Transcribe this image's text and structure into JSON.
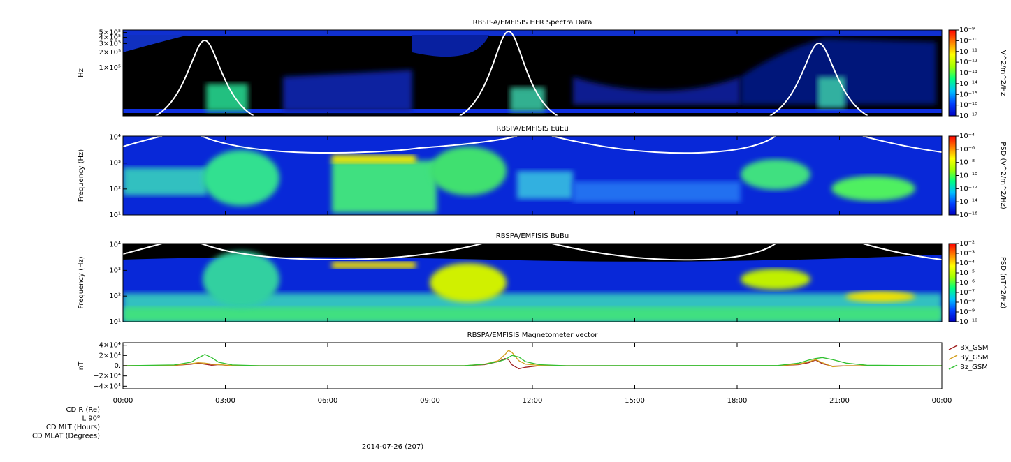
{
  "chart_data": [
    {
      "type": "spectrogram",
      "title": "RBSP-A/EMFISIS  HFR Spectra Data",
      "y_label": "Hz",
      "log_scale": true,
      "ylim": [
        11000,
        560000
      ],
      "yticks": [
        {
          "value": 100000,
          "label": "1×10⁵"
        },
        {
          "value": 200000,
          "label": "2×10⁵"
        },
        {
          "value": 300000,
          "label": "3×10⁵"
        },
        {
          "value": 400000,
          "label": "4×10⁵"
        },
        {
          "value": 500000,
          "label": "5×10⁵"
        }
      ],
      "colorbar": {
        "label": "V^2/m^2/Hz",
        "zlim": [
          1e-17,
          1e-09
        ],
        "colors": [
          "#0000c0",
          "#0040ff",
          "#00c0ff",
          "#00ff80",
          "#a0ff00",
          "#ffff00",
          "#ff8000",
          "#ff0000"
        ],
        "zticks": [
          {
            "value": 1e-17,
            "label": "10⁻¹⁷"
          },
          {
            "value": 1e-16,
            "label": "10⁻¹⁶"
          },
          {
            "value": 1e-15,
            "label": "10⁻¹⁵"
          },
          {
            "value": 1e-14,
            "label": "10⁻¹⁴"
          },
          {
            "value": 1e-13,
            "label": "10⁻¹³"
          },
          {
            "value": 1e-12,
            "label": "10⁻¹²"
          },
          {
            "value": 1e-11,
            "label": "10⁻¹¹"
          },
          {
            "value": 1e-10,
            "label": "10⁻¹⁰"
          },
          {
            "value": 1e-09,
            "label": "10⁻⁹"
          }
        ]
      }
    },
    {
      "type": "spectrogram",
      "title": "RBSPA/EMFISIS  EuEu",
      "y_label": "Frequency (Hz)",
      "log_scale": true,
      "ylim": [
        10,
        11000
      ],
      "yticks": [
        {
          "value": 10,
          "label": "10¹"
        },
        {
          "value": 100,
          "label": "10²"
        },
        {
          "value": 1000,
          "label": "10³"
        },
        {
          "value": 10000,
          "label": "10⁴"
        }
      ],
      "colorbar": {
        "label": "PSD (V^2/m^2/Hz)",
        "zlim": [
          1e-16,
          0.0001
        ],
        "colors": [
          "#0000c0",
          "#0040ff",
          "#00c0ff",
          "#00ff80",
          "#a0ff00",
          "#ffff00",
          "#ff8000",
          "#ff0000"
        ],
        "zticks": [
          {
            "value": 1e-16,
            "label": "10⁻¹⁶"
          },
          {
            "value": 1e-14,
            "label": "10⁻¹⁴"
          },
          {
            "value": 1e-12,
            "label": "10⁻¹²"
          },
          {
            "value": 1e-10,
            "label": "10⁻¹⁰"
          },
          {
            "value": 1e-08,
            "label": "10⁻⁸"
          },
          {
            "value": 1e-06,
            "label": "10⁻⁶"
          },
          {
            "value": 0.0001,
            "label": "10⁻⁴"
          }
        ]
      }
    },
    {
      "type": "spectrogram",
      "title": "RBSPA/EMFISIS  BuBu",
      "y_label": "Frequency (Hz)",
      "log_scale": true,
      "ylim": [
        10,
        11000
      ],
      "yticks": [
        {
          "value": 10,
          "label": "10¹"
        },
        {
          "value": 100,
          "label": "10²"
        },
        {
          "value": 1000,
          "label": "10³"
        },
        {
          "value": 10000,
          "label": "10⁴"
        }
      ],
      "colorbar": {
        "label": "PSD (nT^2/Hz)",
        "zlim": [
          1e-10,
          0.01
        ],
        "colors": [
          "#0000c0",
          "#0040ff",
          "#00c0ff",
          "#00ff80",
          "#a0ff00",
          "#ffff00",
          "#ff8000",
          "#ff0000"
        ],
        "zticks": [
          {
            "value": 1e-10,
            "label": "10⁻¹⁰"
          },
          {
            "value": 1e-09,
            "label": "10⁻⁹"
          },
          {
            "value": 1e-08,
            "label": "10⁻⁸"
          },
          {
            "value": 1e-07,
            "label": "10⁻⁷"
          },
          {
            "value": 1e-06,
            "label": "10⁻⁶"
          },
          {
            "value": 1e-05,
            "label": "10⁻⁵"
          },
          {
            "value": 0.0001,
            "label": "10⁻⁴"
          },
          {
            "value": 0.001,
            "label": "10⁻³"
          },
          {
            "value": 0.01,
            "label": "10⁻²"
          }
        ]
      }
    },
    {
      "type": "line",
      "title": "RBSPA/EMFISIS  Magnetometer vector",
      "y_label": "nT",
      "legend": "right",
      "ylim": [
        -45000,
        45000
      ],
      "yticks": [
        {
          "value": -40000,
          "label": "−4×10⁴"
        },
        {
          "value": -20000,
          "label": "−2×10⁴"
        },
        {
          "value": 0,
          "label": "0."
        },
        {
          "value": 20000,
          "label": "2×10⁴"
        },
        {
          "value": 40000,
          "label": "4×10⁴"
        }
      ],
      "xlim": [
        0,
        24
      ],
      "xticks": [
        {
          "value": 0,
          "label": "00:00"
        },
        {
          "value": 3,
          "label": "03:00"
        },
        {
          "value": 6,
          "label": "06:00"
        },
        {
          "value": 9,
          "label": "09:00"
        },
        {
          "value": 12,
          "label": "12:00"
        },
        {
          "value": 15,
          "label": "15:00"
        },
        {
          "value": 18,
          "label": "18:00"
        },
        {
          "value": 21,
          "label": "21:00"
        },
        {
          "value": 24,
          "label": "00:00"
        }
      ],
      "x_label": "2014-07-26 (207)",
      "ephemeris_labels": [
        "CD R (Re)",
        "L 90⁰",
        "CD MLT (Hours)",
        "CD MLAT (Degrees)"
      ],
      "x": [
        0,
        1.5,
        2.0,
        2.2,
        2.4,
        2.6,
        2.8,
        3.2,
        4,
        10,
        10.6,
        11.0,
        11.2,
        11.3,
        11.4,
        11.6,
        11.8,
        12.2,
        13,
        19.2,
        19.8,
        20.1,
        20.3,
        20.5,
        20.8,
        21.2,
        21.8,
        24
      ],
      "series": [
        {
          "name": "Bx_GSM",
          "color": "#a02020",
          "values": [
            0,
            500,
            3000,
            5000,
            3000,
            1000,
            2000,
            0,
            0,
            0,
            2000,
            8000,
            14000,
            12000,
            2000,
            -6000,
            -3000,
            0,
            0,
            0,
            2000,
            6000,
            11000,
            4000,
            -1000,
            0,
            0,
            0
          ]
        },
        {
          "name": "By_GSM",
          "color": "#d4a020",
          "values": [
            0,
            800,
            4000,
            6000,
            5000,
            3000,
            2000,
            500,
            0,
            0,
            3000,
            10000,
            22000,
            30000,
            26000,
            10000,
            3000,
            500,
            0,
            0,
            3000,
            8000,
            12000,
            6000,
            -2000,
            0,
            0,
            0
          ]
        },
        {
          "name": "Bz_GSM",
          "color": "#30c030",
          "values": [
            0,
            1500,
            7000,
            15000,
            22000,
            16000,
            7000,
            1500,
            0,
            0,
            3000,
            8000,
            12000,
            16000,
            20000,
            17000,
            8000,
            2000,
            0,
            500,
            5000,
            11000,
            14000,
            16000,
            12000,
            5000,
            1000,
            0
          ]
        }
      ]
    }
  ]
}
